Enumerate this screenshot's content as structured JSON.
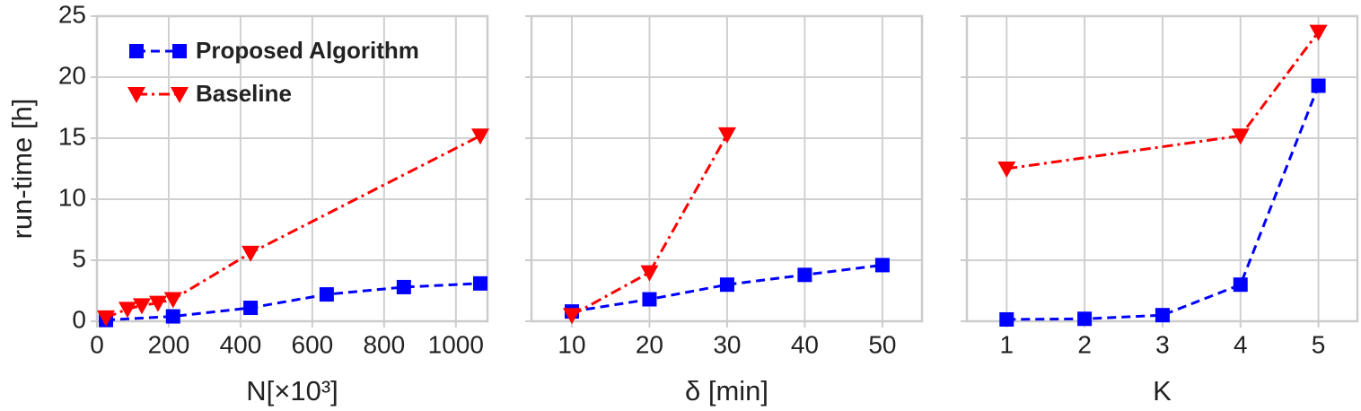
{
  "chart_data": [
    {
      "type": "line",
      "ylabel": "run-time [h]",
      "xlabel": "N[×10³]",
      "xlim": [
        0,
        1088
      ],
      "xticks": [
        0,
        200,
        400,
        600,
        800,
        1000
      ],
      "ylim": [
        0,
        25
      ],
      "yticks": [
        0,
        5,
        10,
        15,
        20,
        25
      ],
      "ytick_labels": true,
      "grid": true,
      "legend": "upper left",
      "series": [
        {
          "name": "Proposed Algorithm",
          "color": "#0000ff",
          "line_style": "dashed",
          "marker": "square",
          "x": [
            25,
            212,
            428,
            640,
            855,
            1068
          ],
          "values": [
            0.1,
            0.4,
            1.1,
            2.2,
            2.8,
            3.1
          ]
        },
        {
          "name": "Baseline",
          "color": "#ff0000",
          "line_style": "dashdot",
          "marker": "triangle-down",
          "x": [
            25,
            85,
            125,
            170,
            212,
            428,
            1068
          ],
          "values": [
            0.3,
            1.0,
            1.3,
            1.5,
            1.8,
            5.6,
            15.2
          ]
        }
      ]
    },
    {
      "type": "line",
      "xlabel": "δ [min]",
      "xlim": [
        4.8,
        55.1
      ],
      "xticks": [
        10,
        20,
        30,
        40,
        50
      ],
      "ylim": [
        0,
        25
      ],
      "yticks": [
        0,
        5,
        10,
        15,
        20,
        25
      ],
      "ytick_labels": false,
      "grid": true,
      "series": [
        {
          "color": "#0000ff",
          "line_style": "dashed",
          "marker": "square",
          "x": [
            10,
            20,
            30,
            40,
            50
          ],
          "values": [
            0.8,
            1.8,
            3.0,
            3.8,
            4.6
          ]
        },
        {
          "color": "#ff0000",
          "line_style": "dashdot",
          "marker": "triangle-down",
          "x": [
            10,
            20,
            30
          ],
          "values": [
            0.5,
            4.0,
            15.3
          ]
        }
      ]
    },
    {
      "type": "line",
      "xlabel": "K",
      "xlim": [
        0.49,
        5.5
      ],
      "xticks": [
        1,
        2,
        3,
        4,
        5
      ],
      "ylim": [
        0,
        25
      ],
      "yticks": [
        0,
        5,
        10,
        15,
        20,
        25
      ],
      "ytick_labels": false,
      "grid": true,
      "series": [
        {
          "color": "#0000ff",
          "line_style": "dashed",
          "marker": "square",
          "x": [
            1,
            2,
            3,
            4,
            5
          ],
          "values": [
            0.15,
            0.2,
            0.5,
            3.0,
            19.3
          ]
        },
        {
          "color": "#ff0000",
          "line_style": "dashdot",
          "marker": "triangle-down",
          "x": [
            1,
            4,
            5
          ],
          "values": [
            12.5,
            15.2,
            23.7
          ]
        }
      ]
    }
  ]
}
